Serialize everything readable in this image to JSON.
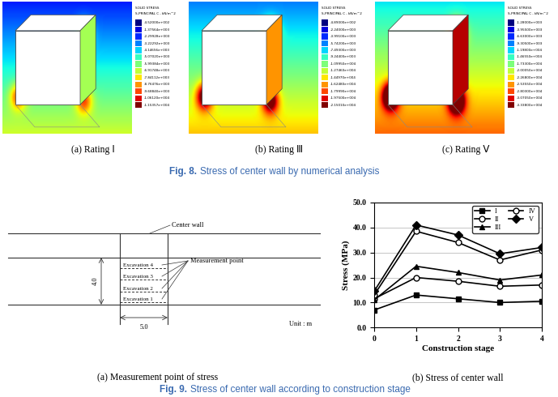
{
  "fig8": {
    "caption": {
      "label": "Fig. 8.",
      "text": "Stress of center wall by numerical analysis"
    },
    "panels": [
      {
        "caption": "(a) Rating Ⅰ",
        "legend_title": [
          "SOLID STRESS",
          "S-PRINCIPAL C , kN/m^2"
        ],
        "legend_values": [
          "-4.52000e+002",
          "-1.37564e+003",
          "-2.29928e+003",
          "-3.22292e+003",
          "-4.14656e+003",
          "-5.07020e+003",
          "-5.99384e+003",
          "-6.91748e+003",
          "-7.84112e+003",
          "-8.76476e+003",
          "-9.68840e+003",
          "-1.06120e+004",
          "-1.15357e+004"
        ]
      },
      {
        "caption": "(b) Rating Ⅲ",
        "legend_title": [
          "SOLID STRESS",
          "S-PRINCIPAL C , kN/m^2"
        ],
        "legend_values": [
          "-4.89000e+002",
          "-2.24000e+003",
          "-3.99100e+003",
          "-5.74200e+003",
          "-7.49300e+003",
          "-9.24400e+003",
          "-1.09950e+004",
          "-1.27460e+004",
          "-1.44970e+004",
          "-1.62480e+004",
          "-1.79990e+004",
          "-1.97500e+004",
          "-2.15010e+004"
        ]
      },
      {
        "caption": "(c) Rating Ⅴ",
        "legend_title": [
          "SOLID STRESS",
          "S-PRINCIPAL C , kN/m^2"
        ],
        "legend_values": [
          "-1.28000e+003",
          "-3.95500e+003",
          "-6.63000e+003",
          "-9.30500e+003",
          "-1.19800e+004",
          "-1.46550e+004",
          "-1.73300e+004",
          "-2.00050e+004",
          "-2.26800e+004",
          "-2.53550e+004",
          "-2.80300e+004",
          "-3.07050e+004",
          "-3.33800e+004"
        ]
      }
    ]
  },
  "fig9": {
    "caption": {
      "label": "Fig. 9.",
      "text": "Stress of center wall according to construction stage"
    },
    "panel_a": {
      "caption": "(a) Measurement point of stress",
      "wall_label": "Center wall",
      "point_label": "Measurement point",
      "excavations": [
        "Excavation 4",
        "Excavation 3",
        "Excavation 2",
        "Excavation 1"
      ],
      "height": "4.0",
      "width": "5.0",
      "unit": "Unit : m"
    },
    "panel_b_caption": "(b) Stress of center wall"
  },
  "chart_data": {
    "type": "line",
    "x_label": "Construction stage",
    "y_label": "Stress (MPa)",
    "x": [
      0,
      1,
      2,
      3,
      4
    ],
    "xlim": [
      0,
      4
    ],
    "xticks": [
      0,
      1,
      2,
      3,
      4
    ],
    "ylim": [
      0,
      50
    ],
    "yticks": [
      {
        "value": 0,
        "label": "0.0"
      },
      {
        "value": 10,
        "label": "10.0"
      },
      {
        "value": 20,
        "label": "20.0"
      },
      {
        "value": 30,
        "label": "30.0"
      },
      {
        "value": 40,
        "label": "40.0"
      },
      {
        "value": 50,
        "label": "50.0"
      }
    ],
    "grid": true,
    "legend": "upper right",
    "series": [
      {
        "name": "I",
        "color": "#000000",
        "marker": "square",
        "values": [
          7.0,
          13.0,
          11.5,
          10.0,
          10.5
        ]
      },
      {
        "name": "II",
        "color": "#000000",
        "marker": "open_circle",
        "values": [
          11.5,
          20.0,
          18.5,
          16.5,
          17.0
        ]
      },
      {
        "name": "III",
        "color": "#000000",
        "marker": "triangle",
        "values": [
          11.0,
          24.5,
          22.0,
          19.0,
          21.0
        ]
      },
      {
        "name": "IV",
        "color": "#000000",
        "marker": "open_circle",
        "values": [
          13.0,
          38.5,
          34.0,
          27.0,
          31.0
        ]
      },
      {
        "name": "V",
        "color": "#000000",
        "marker": "diamond",
        "values": [
          14.5,
          41.0,
          37.0,
          29.5,
          32.0
        ]
      }
    ]
  }
}
